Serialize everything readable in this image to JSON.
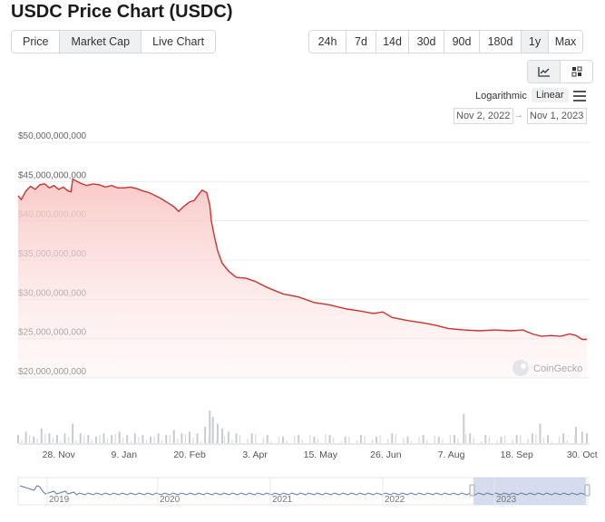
{
  "page_title": "USDC Price Chart (USDC)",
  "tabs": [
    {
      "label": "Price",
      "active": false
    },
    {
      "label": "Market Cap",
      "active": true
    },
    {
      "label": "Live Chart",
      "active": false
    }
  ],
  "ranges": [
    {
      "label": "24h",
      "active": false
    },
    {
      "label": "7d",
      "active": false
    },
    {
      "label": "14d",
      "active": false
    },
    {
      "label": "30d",
      "active": false
    },
    {
      "label": "90d",
      "active": false
    },
    {
      "label": "180d",
      "active": false
    },
    {
      "label": "1y",
      "active": true
    },
    {
      "label": "Max",
      "active": false
    }
  ],
  "chart_icons": [
    {
      "icon": "line-chart-icon",
      "active": true
    },
    {
      "icon": "candlestick-icon",
      "active": false
    }
  ],
  "scale": {
    "label": "Logarithmic",
    "selected": "Linear"
  },
  "date_range": {
    "from": "Nov 2, 2022",
    "to": "Nov 1, 2023"
  },
  "watermark": "CoinGecko",
  "colors": {
    "line": "#d0312d",
    "fill_top": "#f8c7c4",
    "grid": "#e9ecef",
    "volume": "#c8cbcf",
    "navigator_line": "#5b7ba6",
    "navigator_selection": "#c9d3e8"
  },
  "chart_data": {
    "type": "area",
    "x_start": "2022-11-02",
    "x_end": "2023-11-01",
    "x_unit": "days",
    "ylim": [
      20000000000,
      50000000000
    ],
    "y_ticks": [
      "$50,000,000,000",
      "$45,000,000,000",
      "$40,000,000,000",
      "$35,000,000,000",
      "$30,000,000,000",
      "$25,000,000,000",
      "$20,000,000,000"
    ],
    "y_tick_values": [
      50000000000,
      45000000000,
      40000000000,
      35000000000,
      30000000000,
      25000000000,
      20000000000
    ],
    "x_ticks": [
      {
        "label": "28. Nov",
        "day": 26
      },
      {
        "label": "9. Jan",
        "day": 68
      },
      {
        "label": "20. Feb",
        "day": 110
      },
      {
        "label": "3. Apr",
        "day": 152
      },
      {
        "label": "15. May",
        "day": 194
      },
      {
        "label": "26. Jun",
        "day": 236
      },
      {
        "label": "7. Aug",
        "day": 278
      },
      {
        "label": "18. Sep",
        "day": 320
      },
      {
        "label": "30. Oct",
        "day": 362
      }
    ],
    "series": [
      {
        "values": [
          [
            0,
            43.2
          ],
          [
            2,
            42.7
          ],
          [
            5,
            43.8
          ],
          [
            8,
            44.4
          ],
          [
            11,
            44.0
          ],
          [
            14,
            44.6
          ],
          [
            17,
            44.7
          ],
          [
            20,
            44.2
          ],
          [
            23,
            44.5
          ],
          [
            26,
            44.0
          ],
          [
            29,
            44.3
          ],
          [
            32,
            43.8
          ],
          [
            34,
            43.7
          ],
          [
            35,
            45.3
          ],
          [
            37,
            45.1
          ],
          [
            40,
            44.8
          ],
          [
            44,
            44.5
          ],
          [
            48,
            44.7
          ],
          [
            52,
            44.6
          ],
          [
            56,
            44.3
          ],
          [
            60,
            44.5
          ],
          [
            64,
            44.2
          ],
          [
            68,
            44.2
          ],
          [
            72,
            44.3
          ],
          [
            76,
            44.1
          ],
          [
            80,
            43.8
          ],
          [
            84,
            43.6
          ],
          [
            88,
            43.2
          ],
          [
            92,
            42.8
          ],
          [
            96,
            42.3
          ],
          [
            100,
            41.8
          ],
          [
            103,
            41.2
          ],
          [
            106,
            41.8
          ],
          [
            110,
            42.4
          ],
          [
            113,
            42.6
          ],
          [
            116,
            43.4
          ],
          [
            118,
            43.9
          ],
          [
            121,
            43.6
          ],
          [
            123,
            42.0
          ],
          [
            124,
            40.0
          ],
          [
            126,
            38.0
          ],
          [
            128,
            36.2
          ],
          [
            131,
            34.6
          ],
          [
            135,
            33.6
          ],
          [
            140,
            32.8
          ],
          [
            146,
            32.7
          ],
          [
            152,
            32.3
          ],
          [
            160,
            31.5
          ],
          [
            170,
            30.7
          ],
          [
            180,
            30.3
          ],
          [
            190,
            29.6
          ],
          [
            200,
            29.3
          ],
          [
            210,
            28.8
          ],
          [
            220,
            28.5
          ],
          [
            228,
            28.2
          ],
          [
            234,
            28.4
          ],
          [
            240,
            27.7
          ],
          [
            250,
            27.3
          ],
          [
            260,
            27.0
          ],
          [
            268,
            26.7
          ],
          [
            276,
            26.3
          ],
          [
            286,
            26.1
          ],
          [
            296,
            26.0
          ],
          [
            306,
            26.1
          ],
          [
            316,
            26.0
          ],
          [
            324,
            26.1
          ],
          [
            330,
            25.6
          ],
          [
            336,
            25.3
          ],
          [
            342,
            25.4
          ],
          [
            348,
            25.3
          ],
          [
            354,
            25.6
          ],
          [
            358,
            25.4
          ],
          [
            362,
            24.9
          ],
          [
            365,
            24.9
          ]
        ]
      }
    ],
    "y_scale_note": "values in billions USD",
    "volume": [
      [
        0,
        0.25
      ],
      [
        5,
        0.35
      ],
      [
        10,
        0.2
      ],
      [
        15,
        0.45
      ],
      [
        20,
        0.3
      ],
      [
        25,
        0.25
      ],
      [
        30,
        0.3
      ],
      [
        35,
        0.6
      ],
      [
        40,
        0.3
      ],
      [
        45,
        0.25
      ],
      [
        50,
        0.2
      ],
      [
        55,
        0.3
      ],
      [
        60,
        0.25
      ],
      [
        65,
        0.35
      ],
      [
        70,
        0.25
      ],
      [
        75,
        0.3
      ],
      [
        80,
        0.25
      ],
      [
        85,
        0.2
      ],
      [
        90,
        0.3
      ],
      [
        95,
        0.25
      ],
      [
        100,
        0.4
      ],
      [
        105,
        0.3
      ],
      [
        110,
        0.35
      ],
      [
        115,
        0.3
      ],
      [
        120,
        0.5
      ],
      [
        123,
        1.0
      ],
      [
        125,
        0.8
      ],
      [
        128,
        0.6
      ],
      [
        131,
        0.45
      ],
      [
        135,
        0.35
      ],
      [
        140,
        0.3
      ],
      [
        150,
        0.3
      ],
      [
        160,
        0.25
      ],
      [
        170,
        0.2
      ],
      [
        180,
        0.25
      ],
      [
        190,
        0.2
      ],
      [
        200,
        0.25
      ],
      [
        210,
        0.2
      ],
      [
        220,
        0.25
      ],
      [
        230,
        0.2
      ],
      [
        240,
        0.3
      ],
      [
        250,
        0.2
      ],
      [
        260,
        0.25
      ],
      [
        270,
        0.2
      ],
      [
        280,
        0.25
      ],
      [
        286,
        0.9
      ],
      [
        290,
        0.3
      ],
      [
        300,
        0.25
      ],
      [
        310,
        0.2
      ],
      [
        320,
        0.25
      ],
      [
        330,
        0.3
      ],
      [
        335,
        0.6
      ],
      [
        340,
        0.25
      ],
      [
        350,
        0.3
      ],
      [
        358,
        0.5
      ],
      [
        362,
        0.35
      ],
      [
        365,
        0.3
      ]
    ],
    "navigator": {
      "x_ticks": [
        "2019",
        "2020",
        "2021",
        "2022",
        "2023"
      ],
      "selection": "Nov 2, 2022 – Nov 1, 2023"
    }
  }
}
